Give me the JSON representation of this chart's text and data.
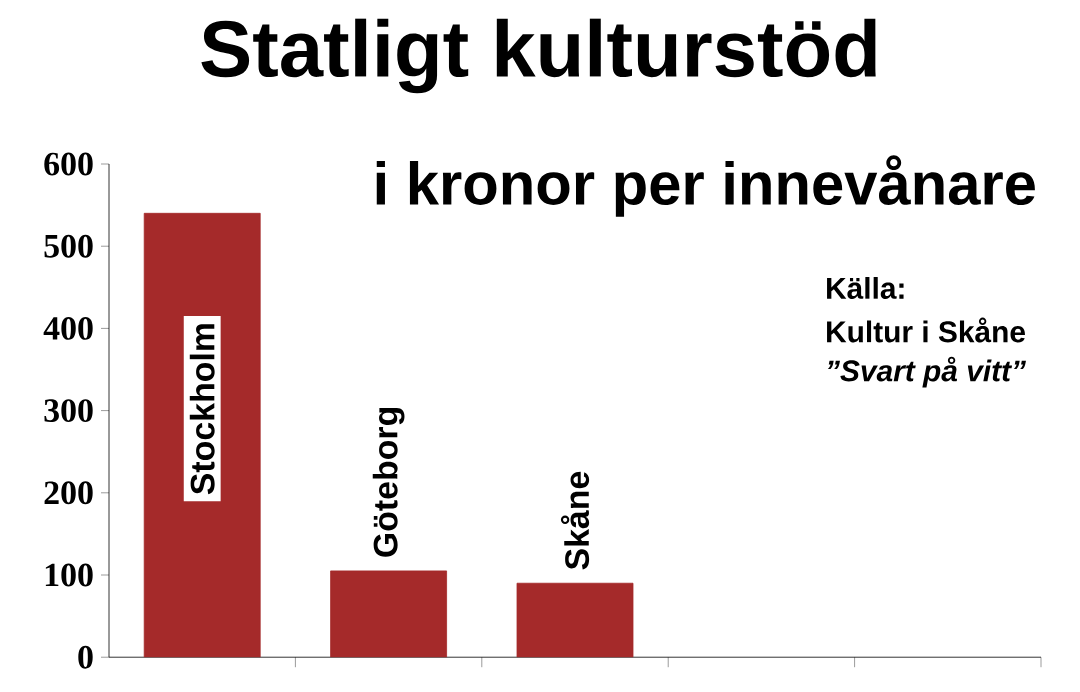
{
  "chart_data": {
    "type": "bar",
    "title": "Statligt kulturstöd",
    "subtitle": "i kronor per innevånare",
    "annotations": [
      "Källa:",
      "Kultur i Skåne",
      "”Svart på vitt”"
    ],
    "categories": [
      "Stockholm",
      "Göteborg",
      "Skåne",
      null,
      null
    ],
    "values": [
      540,
      105,
      90,
      null,
      null
    ],
    "color": "#a52a2a",
    "ylim": [
      0,
      600
    ],
    "yticks": [
      0,
      100,
      200,
      300,
      400,
      500,
      600
    ]
  }
}
